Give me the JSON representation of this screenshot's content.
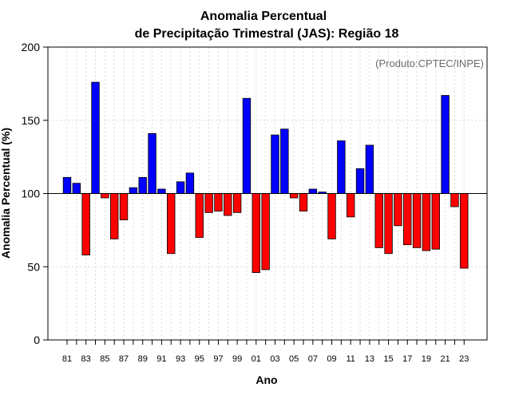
{
  "chart_data": {
    "type": "bar",
    "title_line1": "Anomalia Percentual",
    "title_line2": "de Precipitação Trimestral (JAS): Região 18",
    "xlabel": "Ano",
    "ylabel": "Anomalia Percentual (%)",
    "credit": "(Produto:CPTEC/INPE)",
    "baseline": 100,
    "ylim": [
      0,
      200
    ],
    "yticks": [
      0,
      50,
      100,
      150,
      200
    ],
    "ytick_labels": [
      "0",
      "50",
      "100",
      "150",
      "200"
    ],
    "categories": [
      "81",
      "82",
      "83",
      "84",
      "85",
      "86",
      "87",
      "88",
      "89",
      "90",
      "91",
      "92",
      "93",
      "94",
      "95",
      "96",
      "97",
      "98",
      "99",
      "00",
      "01",
      "02",
      "03",
      "04",
      "05",
      "06",
      "07",
      "08",
      "09",
      "10",
      "11",
      "12",
      "13",
      "14",
      "15",
      "16",
      "17",
      "18",
      "19",
      "20",
      "21",
      "22",
      "23"
    ],
    "xtick_labels_shown": [
      "81",
      "83",
      "85",
      "87",
      "89",
      "91",
      "93",
      "95",
      "97",
      "99",
      "01",
      "03",
      "05",
      "07",
      "09",
      "11",
      "13",
      "15",
      "17",
      "19",
      "21",
      "23"
    ],
    "values": [
      111,
      107,
      58,
      176,
      97,
      69,
      82,
      104,
      111,
      141,
      103,
      59,
      108,
      114,
      70,
      87,
      88,
      85,
      87,
      165,
      46,
      48,
      140,
      144,
      97,
      88,
      103,
      101,
      69,
      136,
      84,
      117,
      133,
      63,
      59,
      78,
      65,
      63,
      61,
      62,
      167,
      91,
      49
    ],
    "colors": {
      "above": "#0000ff",
      "below": "#ff0000",
      "outline": "#000000"
    }
  }
}
